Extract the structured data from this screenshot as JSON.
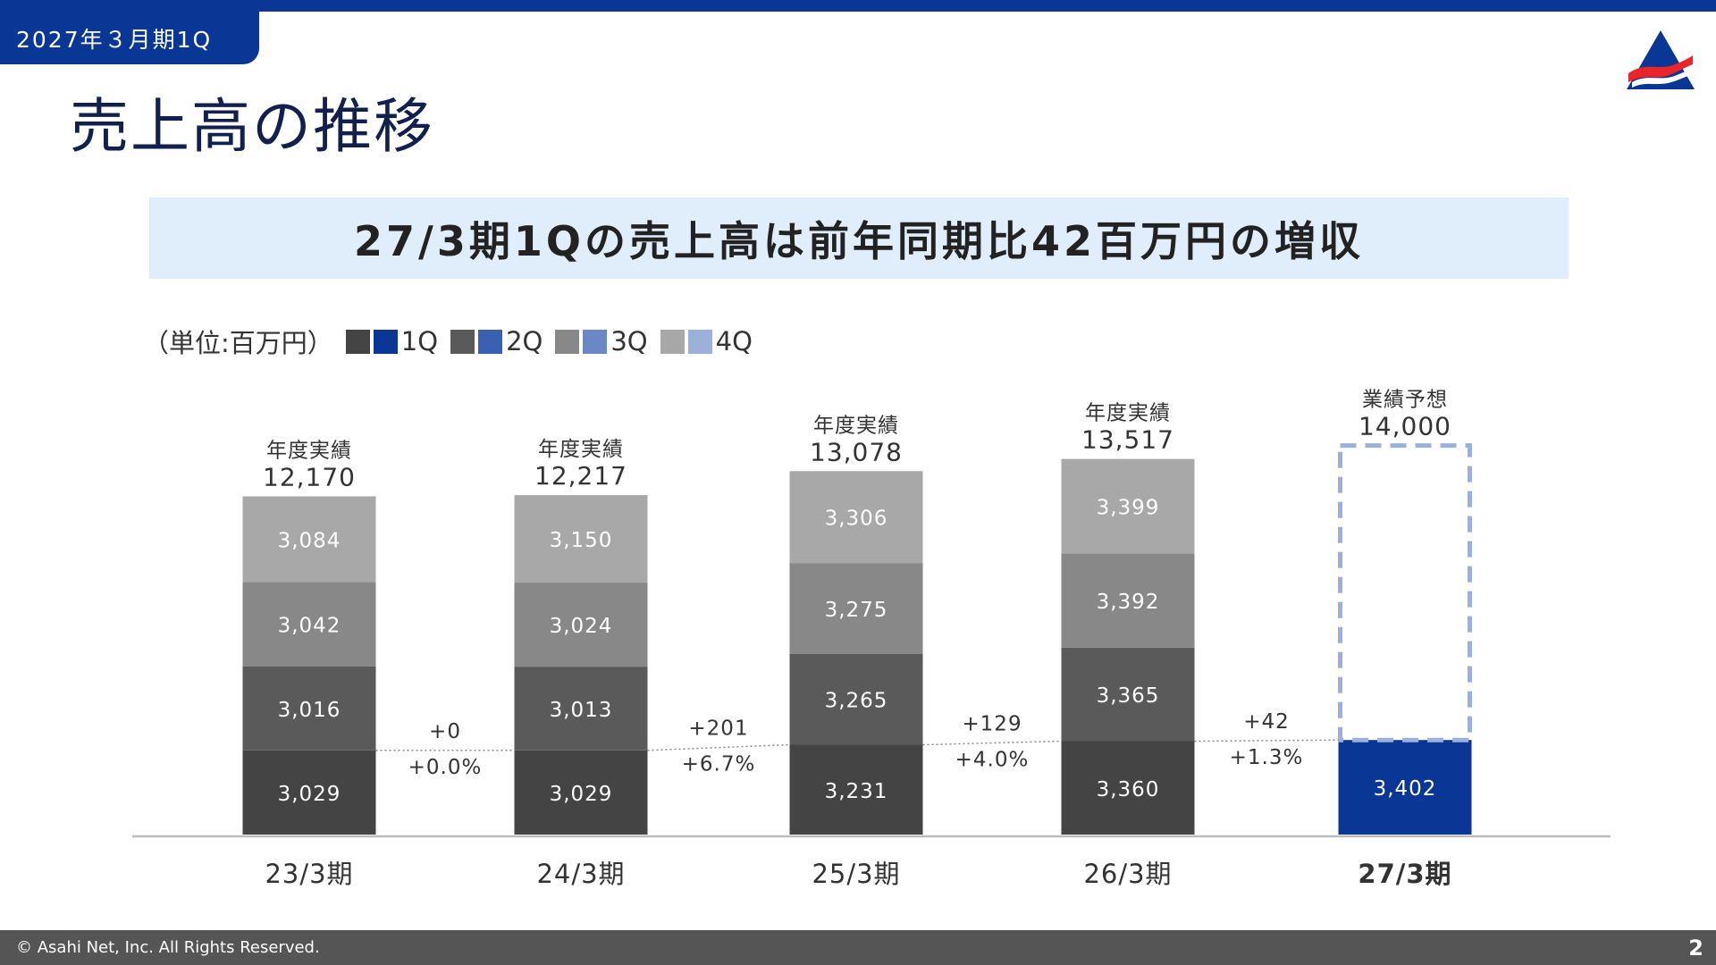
{
  "header": {
    "period_tab": "2027年３月期1Q",
    "title": "売上高の推移",
    "headline": "27/3期1Qの売上高は前年同期比42百万円の増収"
  },
  "legend": {
    "unit": "（単位:百万円）",
    "items": [
      {
        "label": "1Q",
        "gray": "#444444",
        "blue": "#0a3696"
      },
      {
        "label": "2Q",
        "gray": "#5a5a5a",
        "blue": "#3a60b4"
      },
      {
        "label": "3Q",
        "gray": "#888888",
        "blue": "#6a88c4"
      },
      {
        "label": "4Q",
        "gray": "#a8a8a8",
        "blue": "#9bb0da"
      }
    ]
  },
  "chart_data": {
    "type": "bar",
    "stacked": true,
    "categories": [
      "23/3期",
      "24/3期",
      "25/3期",
      "26/3期",
      "27/3期"
    ],
    "series": [
      {
        "name": "1Q",
        "values": [
          3029,
          3029,
          3231,
          3360,
          3402
        ]
      },
      {
        "name": "2Q",
        "values": [
          3016,
          3013,
          3265,
          3365,
          null
        ]
      },
      {
        "name": "3Q",
        "values": [
          3042,
          3024,
          3275,
          3392,
          null
        ]
      },
      {
        "name": "4Q",
        "values": [
          3084,
          3150,
          3306,
          3399,
          null
        ]
      }
    ],
    "totals": [
      {
        "label": "年度実績",
        "value": "12,170"
      },
      {
        "label": "年度実績",
        "value": "12,217"
      },
      {
        "label": "年度実績",
        "value": "13,078"
      },
      {
        "label": "年度実績",
        "value": "13,517"
      },
      {
        "label": "業績予想",
        "value": "14,000"
      }
    ],
    "forecast_total": 14000,
    "q1_yoy_changes": [
      {
        "diff": "+0",
        "pct": "+0.0%"
      },
      {
        "diff": "+201",
        "pct": "+6.7%"
      },
      {
        "diff": "+129",
        "pct": "+4.0%"
      },
      {
        "diff": "+42",
        "pct": "+1.3%"
      }
    ],
    "colors": {
      "past": [
        "#444444",
        "#5a5a5a",
        "#888888",
        "#a8a8a8"
      ],
      "current": "#0a3696",
      "forecast_outline": "#9bb0da"
    }
  },
  "footer": {
    "copyright": "© Asahi Net, Inc. All Rights Reserved.",
    "page_number": "2"
  }
}
